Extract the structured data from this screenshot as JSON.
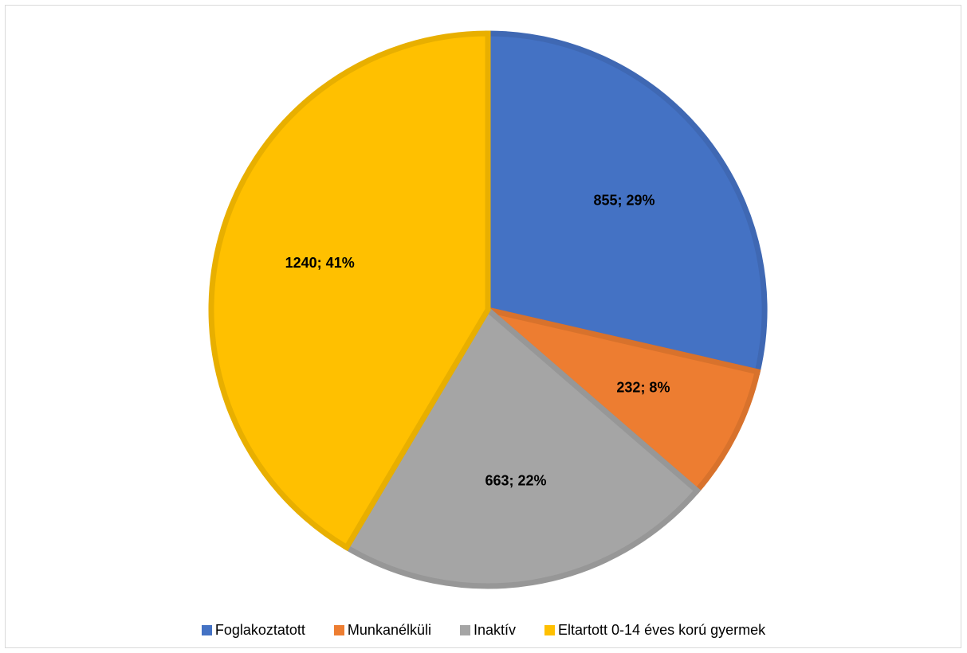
{
  "chart_data": {
    "type": "pie",
    "categories": [
      "Foglakoztatott",
      "Munkanélküli",
      "Inaktív",
      "Eltartott 0-14 éves korú gyermek"
    ],
    "values": [
      855,
      232,
      663,
      1240
    ],
    "data_labels": [
      "855; 29%",
      "232; 8%",
      "663; 22%",
      "1240; 41%"
    ],
    "colors": [
      "#4472C4",
      "#ED7D31",
      "#A5A5A5",
      "#FFC000"
    ],
    "border_colors": [
      "#3F68B3",
      "#D8722C",
      "#979797",
      "#E8AF00"
    ],
    "start_angle": "12 o'clock",
    "direction": "clockwise",
    "legend": "bottom"
  }
}
